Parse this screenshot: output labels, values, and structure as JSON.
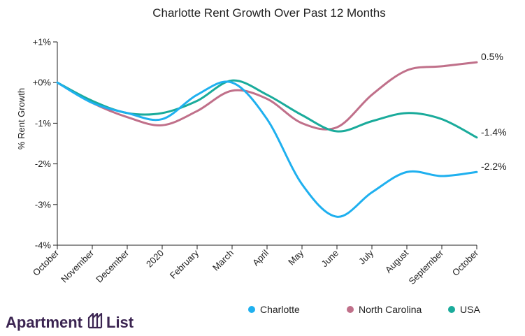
{
  "chart_data": {
    "type": "line",
    "title": "Charlotte Rent Growth Over Past 12 Months",
    "ylabel": "% Rent Growth",
    "xlabel": "",
    "categories": [
      "October",
      "November",
      "December",
      "2020",
      "February",
      "March",
      "April",
      "May",
      "June",
      "July",
      "August",
      "September",
      "October"
    ],
    "yticks": [
      {
        "value": 1,
        "label": "+1%"
      },
      {
        "value": 0,
        "label": "+0%"
      },
      {
        "value": -1,
        "label": "-1%"
      },
      {
        "value": -2,
        "label": "-2%"
      },
      {
        "value": -3,
        "label": "-3%"
      },
      {
        "value": -4,
        "label": "-4%"
      }
    ],
    "ylim": [
      -4,
      1
    ],
    "grid": false,
    "legend_position": "bottom-right",
    "series": [
      {
        "name": "Charlotte",
        "color": "#1fb0ef",
        "end_label": "-2.2%",
        "values": [
          0,
          -0.5,
          -0.75,
          -0.9,
          -0.3,
          0,
          -0.9,
          -2.5,
          -3.3,
          -2.7,
          -2.2,
          -2.3,
          -2.2
        ]
      },
      {
        "name": "North Carolina",
        "color": "#c0708a",
        "end_label": "0.5%",
        "values": [
          0,
          -0.5,
          -0.85,
          -1.05,
          -0.7,
          -0.2,
          -0.4,
          -1.0,
          -1.1,
          -0.3,
          0.3,
          0.4,
          0.5
        ]
      },
      {
        "name": "USA",
        "color": "#1aab9b",
        "end_label": "-1.4%",
        "values": [
          0,
          -0.45,
          -0.75,
          -0.75,
          -0.45,
          0.05,
          -0.3,
          -0.8,
          -1.2,
          -0.95,
          -0.75,
          -0.9,
          -1.35
        ]
      }
    ]
  },
  "logo": {
    "text_left": "Apartment",
    "text_right": "List"
  }
}
